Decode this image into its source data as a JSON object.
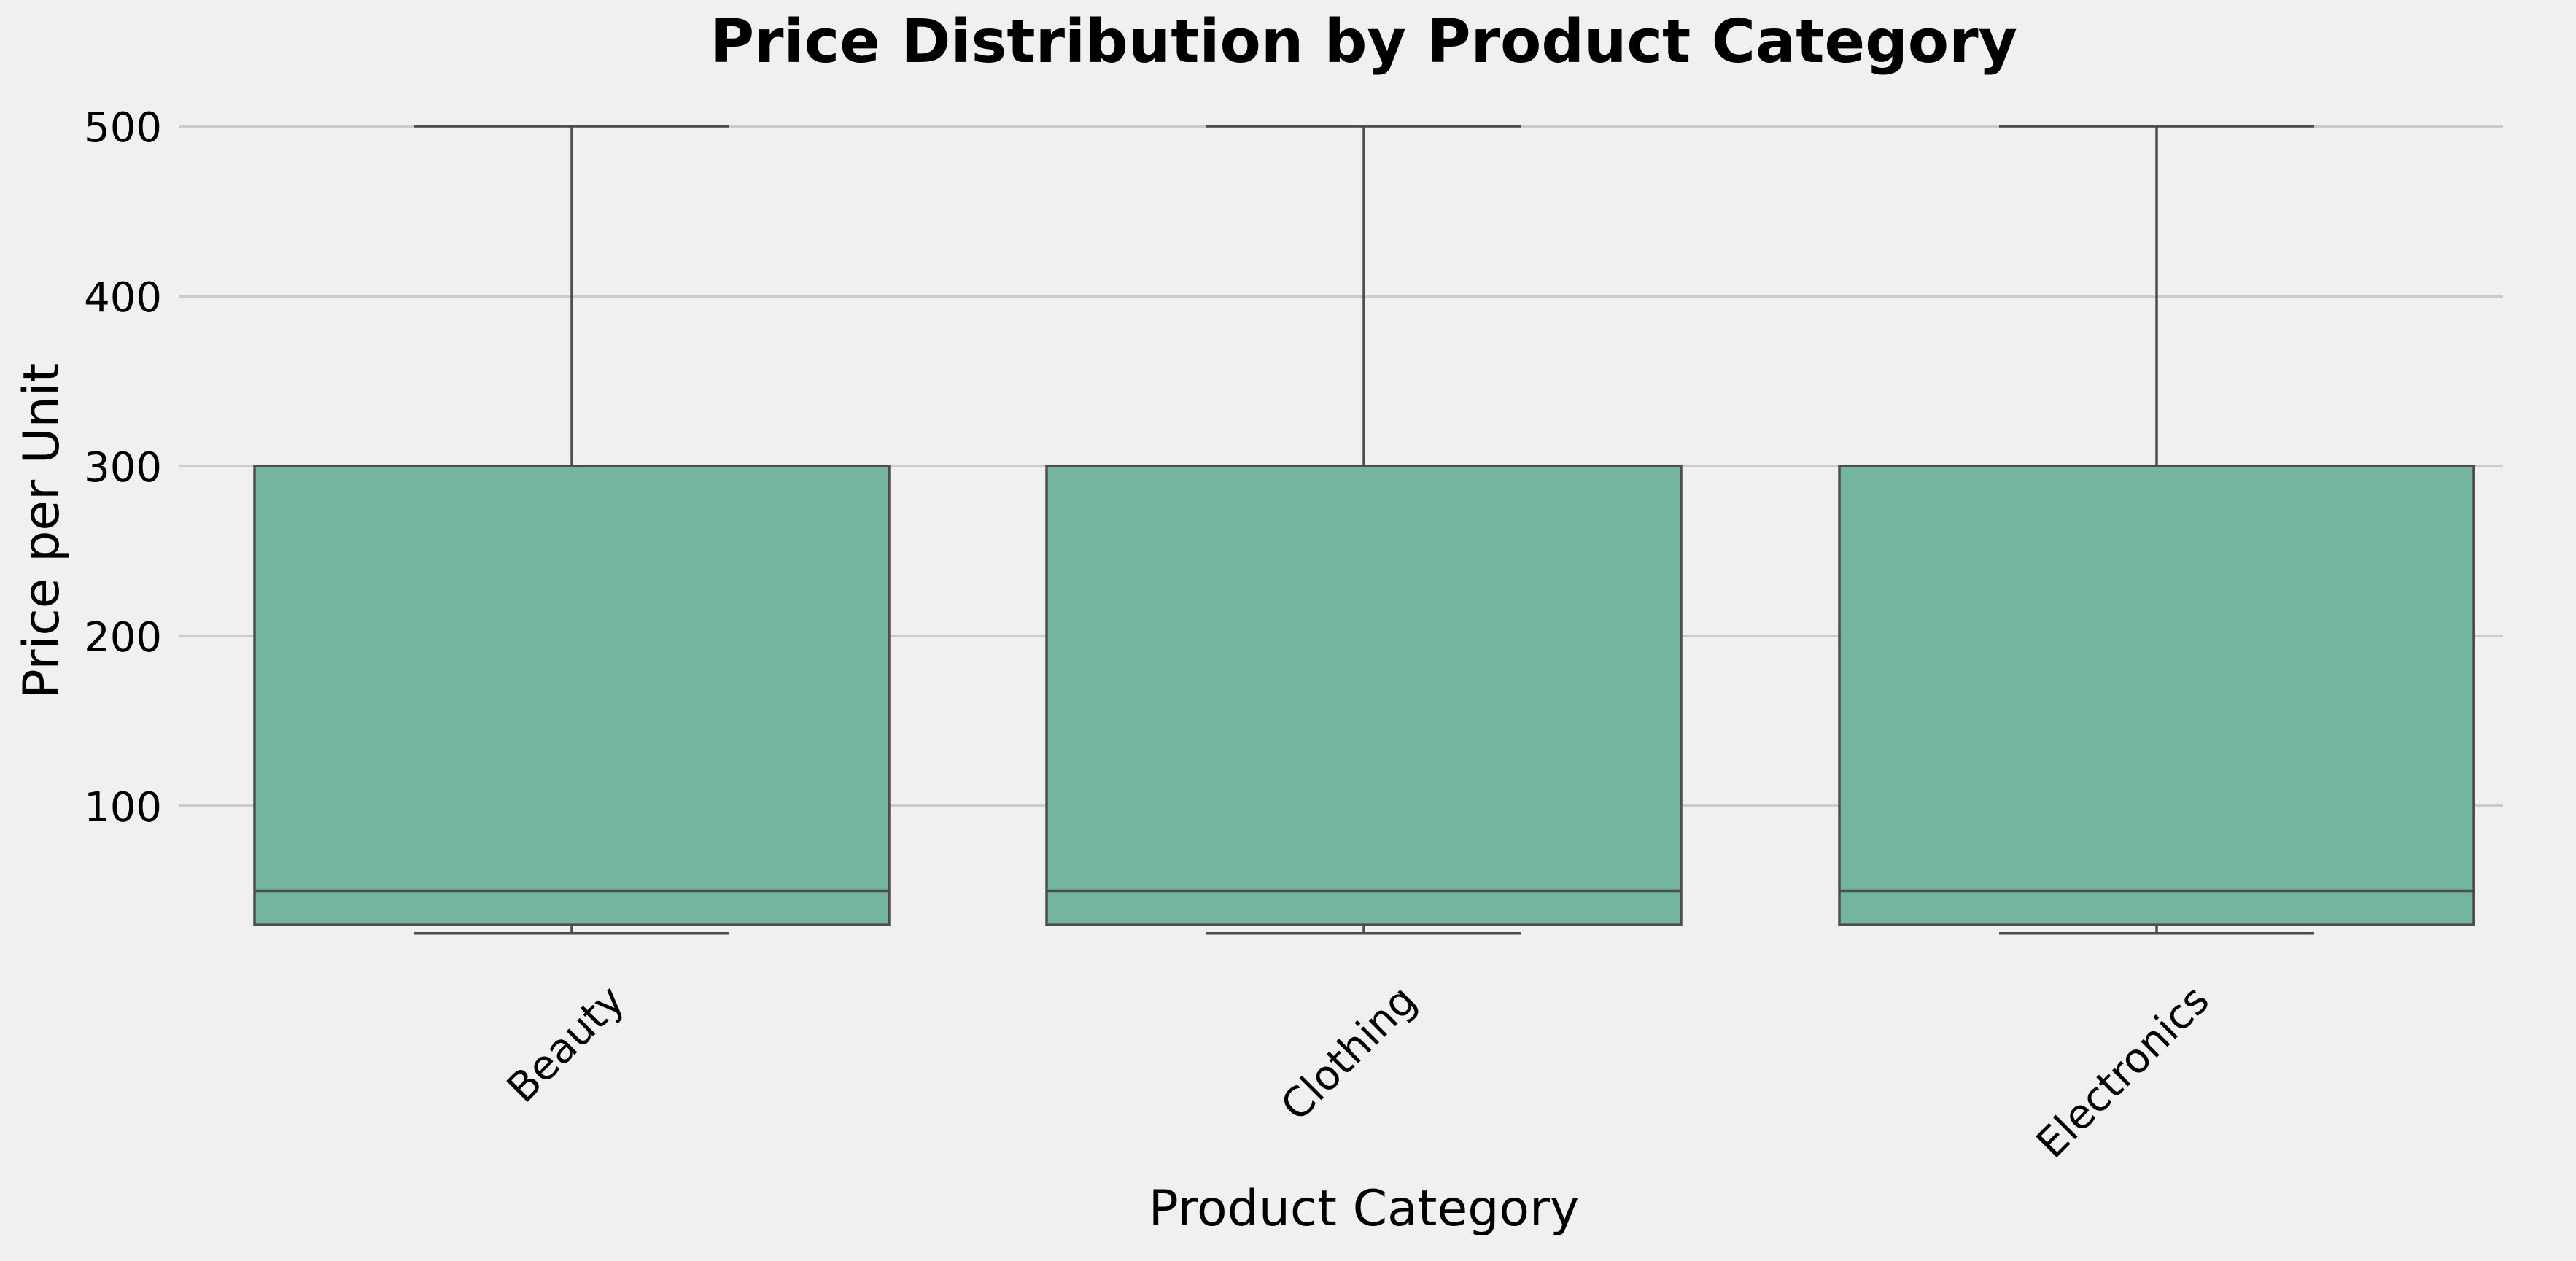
{
  "colors": {
    "background": "#f0f0f0",
    "box_fill": "#74b5a1",
    "line": "#4d4d4d",
    "grid": "#cbcbcb",
    "text": "#000000"
  },
  "chart_data": {
    "type": "box",
    "title": "Price Distribution by Product Category",
    "xlabel": "Product Category",
    "ylabel": "Price per Unit",
    "ylim": [
      25,
      500
    ],
    "yticks": [
      100,
      200,
      300,
      400,
      500
    ],
    "tick_labels": [
      "100",
      "200",
      "300",
      "400",
      "500"
    ],
    "grid": "horizontal",
    "categories": [
      "Beauty",
      "Clothing",
      "Electronics"
    ],
    "boxes": [
      {
        "category": "Beauty",
        "whisker_low": 25,
        "q1": 30,
        "median": 50,
        "q3": 300,
        "whisker_high": 500
      },
      {
        "category": "Clothing",
        "whisker_low": 25,
        "q1": 30,
        "median": 50,
        "q3": 300,
        "whisker_high": 500
      },
      {
        "category": "Electronics",
        "whisker_low": 25,
        "q1": 30,
        "median": 50,
        "q3": 300,
        "whisker_high": 500
      }
    ]
  }
}
